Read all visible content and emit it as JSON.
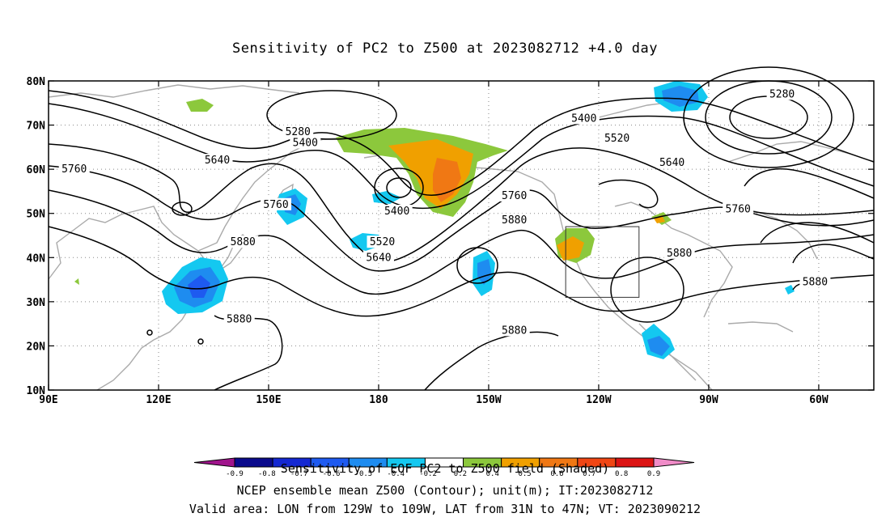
{
  "title": "Sensitivity of PC2 to Z500 at 2023082712 +4.0 day",
  "axes": {
    "lat_labels": [
      "80N",
      "70N",
      "60N",
      "50N",
      "40N",
      "30N",
      "20N",
      "10N"
    ],
    "lon_labels": [
      "90E",
      "120E",
      "150E",
      "180",
      "150W",
      "120W",
      "90W",
      "60W"
    ]
  },
  "contours": {
    "levels": [
      "5280",
      "5400",
      "5520",
      "5640",
      "5760",
      "5880"
    ],
    "labels": [
      {
        "text": "5400",
        "lon": -124,
        "lat": 71.5
      },
      {
        "text": "5520",
        "lon": -115,
        "lat": 67
      },
      {
        "text": "5640",
        "lon": -100,
        "lat": 61.5
      },
      {
        "text": "5280",
        "lon": -70,
        "lat": 77
      },
      {
        "text": "5280",
        "lon": 158,
        "lat": 68.5
      },
      {
        "text": "5400",
        "lon": 160,
        "lat": 66
      },
      {
        "text": "5640",
        "lon": 136,
        "lat": 62
      },
      {
        "text": "5760",
        "lon": 97,
        "lat": 60
      },
      {
        "text": "5760",
        "lon": 152,
        "lat": 52
      },
      {
        "text": "5880",
        "lon": 143,
        "lat": 43.5
      },
      {
        "text": "5400",
        "lon": -175,
        "lat": 50.5
      },
      {
        "text": "5520",
        "lon": -179,
        "lat": 43.5
      },
      {
        "text": "5640",
        "lon": -180,
        "lat": 40
      },
      {
        "text": "5760",
        "lon": -143,
        "lat": 54
      },
      {
        "text": "5880",
        "lon": -143,
        "lat": 48.5
      },
      {
        "text": "5880",
        "lon": -98,
        "lat": 41
      },
      {
        "text": "5760",
        "lon": -82,
        "lat": 51
      },
      {
        "text": "5880",
        "lon": -143,
        "lat": 23.5
      },
      {
        "text": "5880",
        "lon": -61,
        "lat": 34.5
      },
      {
        "text": "5880",
        "lon": 142,
        "lat": 26
      }
    ]
  },
  "valid_box": {
    "lon_min": -129,
    "lon_max": -109,
    "lat_min": 31,
    "lat_max": 47
  },
  "colorbar": {
    "colors": [
      "#a0148c",
      "#0a0a8c",
      "#1428d2",
      "#1e5af0",
      "#1e8cf0",
      "#14c8f0",
      "#ffffff",
      "#8cc83c",
      "#f0a000",
      "#f07814",
      "#f04614",
      "#dc1414",
      "#f08cc8"
    ],
    "labels": [
      "-0.9",
      "-0.8",
      "-0.7",
      "-0.6",
      "-0.5",
      "-0.4",
      "-0.2",
      "0.2",
      "0.4",
      "0.5",
      "0.6",
      "0.7",
      "0.8",
      "0.9"
    ]
  },
  "captions": [
    "Sensitivity of EOF PC2 to Z500 field (Shaded)",
    "NCEP ensemble mean Z500 (Contour); unit(m); IT:2023082712",
    "Valid area: LON from 129W to 109W, LAT from 31N to 47N; VT: 2023090212"
  ]
}
